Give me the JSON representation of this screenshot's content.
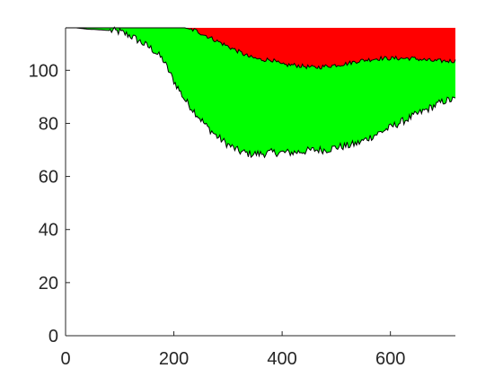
{
  "chart_data": {
    "type": "area",
    "title": "",
    "xlabel": "",
    "ylabel": "",
    "xlim": [
      0,
      720
    ],
    "ylim": [
      0,
      116
    ],
    "grid": false,
    "legend": "none",
    "x_ticks": [
      0,
      200,
      400,
      600
    ],
    "y_ticks": [
      0,
      20,
      40,
      60,
      80,
      100
    ],
    "x": [
      0,
      20,
      40,
      60,
      80,
      100,
      120,
      140,
      160,
      180,
      200,
      220,
      240,
      260,
      280,
      300,
      320,
      340,
      360,
      380,
      400,
      420,
      440,
      460,
      480,
      500,
      520,
      540,
      560,
      580,
      600,
      620,
      640,
      660,
      680,
      700,
      720
    ],
    "series": [
      {
        "color": "#000000",
        "values": [
          116,
          116,
          115.5,
          115.3,
          115,
          114.5,
          113,
          110.5,
          108,
          104,
          96,
          89,
          84,
          79,
          75,
          72,
          69.5,
          68.5,
          68.5,
          69,
          69,
          69,
          69.5,
          70,
          70,
          71,
          71.5,
          72.5,
          74.5,
          76.5,
          78.5,
          80.5,
          82.5,
          84.5,
          86.5,
          88.5,
          89
        ]
      },
      {
        "color": "#00ff00",
        "values": [
          116,
          116,
          116,
          116,
          116,
          116,
          116,
          116,
          116,
          116,
          116,
          116,
          115,
          113,
          111,
          109,
          107,
          105,
          104,
          104,
          102,
          102,
          101.5,
          101,
          101.5,
          102,
          102.5,
          103.5,
          104,
          104.5,
          104.5,
          104.5,
          104.5,
          104,
          103.5,
          103.5,
          103.5
        ]
      },
      {
        "color": "#ff0000",
        "values": [
          116,
          116,
          116,
          116,
          116,
          116,
          116,
          116,
          116,
          116,
          116,
          116,
          116,
          116,
          116,
          116,
          116,
          116,
          116,
          116,
          116,
          116,
          116,
          116,
          116,
          116,
          116,
          116,
          116,
          116,
          116,
          116,
          116,
          116,
          116,
          116,
          116
        ]
      }
    ]
  }
}
